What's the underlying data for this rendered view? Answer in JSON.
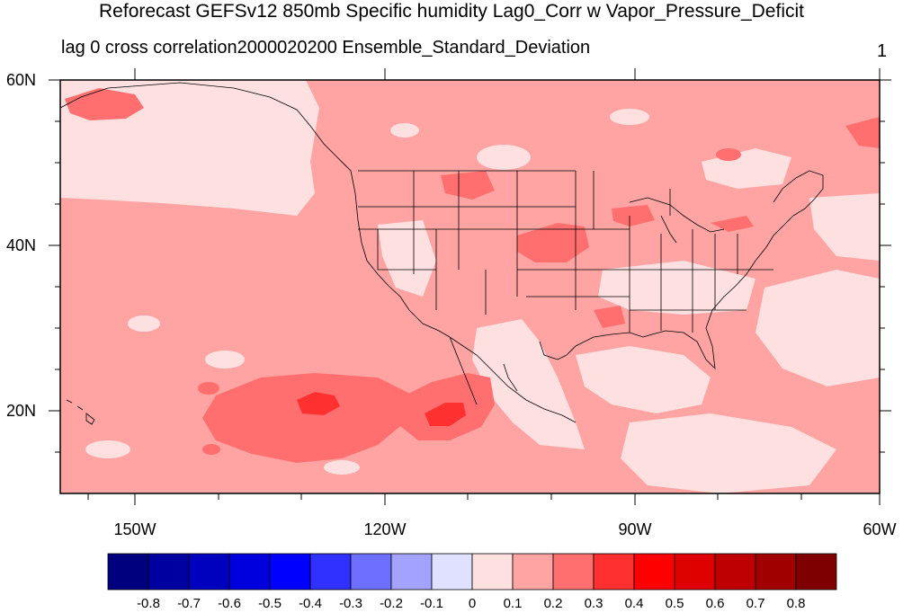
{
  "title": "Reforecast GEFSv12 850mb Specific humidity Lag0_Corr w Vapor_Pressure_Deficit",
  "subtitle_left": "lag 0 cross correlation2000020200 Ensemble_Standard_Deviation",
  "subtitle_right": "1",
  "map": {
    "lat_labels": [
      "60N",
      "40N",
      "20N"
    ],
    "lon_labels": [
      "150W",
      "120W",
      "90W",
      "60W"
    ],
    "projection": "cylindrical equidistant",
    "lon_range": [
      -161,
      -60
    ],
    "lat_range": [
      10,
      60
    ],
    "background_level": "0.1 to 0.2",
    "dominant_colors": {
      "ocean_and_most_land": "#FFA3A3",
      "pacific_north_and_gulf": "#FFE0E0",
      "pacific_cores": "#FF5F5F",
      "pacific_max": "#FF2F2F",
      "coastline": "#000000"
    }
  },
  "colorbar": {
    "levels": [
      "-0.8",
      "-0.7",
      "-0.6",
      "-0.5",
      "-0.4",
      "-0.3",
      "-0.2",
      "-0.1",
      "0",
      "0.1",
      "0.2",
      "0.3",
      "0.4",
      "0.5",
      "0.6",
      "0.7",
      "0.8"
    ],
    "colors": [
      "#00007F",
      "#0000A0",
      "#0000BF",
      "#0000DF",
      "#0000FF",
      "#3030FF",
      "#6F6FFF",
      "#A3A3FF",
      "#E0E0FF",
      "#FFE0E0",
      "#FFA3A3",
      "#FF6F6F",
      "#FF3030",
      "#FF0000",
      "#DF0000",
      "#BF0000",
      "#A00000",
      "#7F0000"
    ]
  }
}
